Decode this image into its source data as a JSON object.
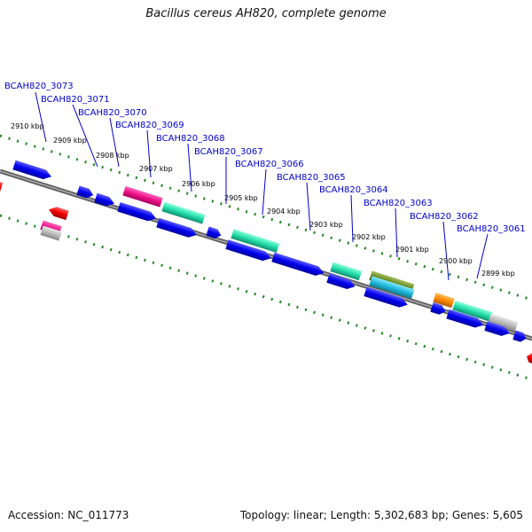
{
  "header": {
    "title": "Bacillus cereus AH820, complete genome"
  },
  "footer": {
    "accession": "Accession: NC_011773",
    "summary": "Topology: linear; Length: 5,302,683 bp; Genes: 5,605"
  },
  "ruler_labels": [
    "2910 kbp",
    "2909 kbp",
    "2908 kbp",
    "2907 kbp",
    "2906 kbp",
    "2905 kbp",
    "2904 kbp",
    "2903 kbp",
    "2902 kbp",
    "2901 kbp",
    "2900 kbp",
    "2899 kbp"
  ],
  "gene_labels": [
    "BCAH820_3073",
    "BCAH820_3071",
    "BCAH820_3070",
    "BCAH820_3069",
    "BCAH820_3068",
    "BCAH820_3067",
    "BCAH820_3066",
    "BCAH820_3065",
    "BCAH820_3064",
    "BCAH820_3063",
    "BCAH820_3062",
    "BCAH820_3061"
  ],
  "colors": {
    "backbone": "#808080",
    "cds": "#0000ee",
    "rna": "#ee0000",
    "cog_pink": "#ee1188",
    "cog_green": "#22ddaa",
    "cog_olive": "#668822",
    "cog_cyan": "#22bbdd",
    "cog_orange": "#ff8800",
    "cog_gray": "#bbbbbb",
    "ruler_ticks": "#228822"
  }
}
